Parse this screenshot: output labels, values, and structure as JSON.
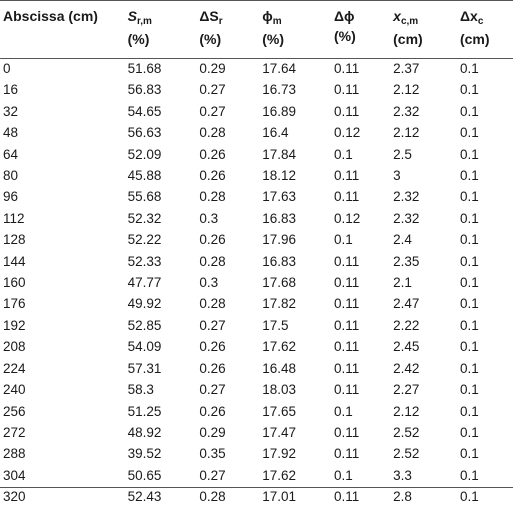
{
  "table": {
    "headers": [
      {
        "main": "Abscissa (cm)",
        "unit": ""
      },
      {
        "main": "S",
        "sub": "r,m",
        "unit": "(%)"
      },
      {
        "main": "ΔS",
        "sub": "r",
        "unit": "(%)"
      },
      {
        "main": "ϕ",
        "sub": "m",
        "unit": "(%)"
      },
      {
        "main": "Δϕ",
        "sub": "",
        "unit": "(%)"
      },
      {
        "main": "x",
        "sub": "c,m",
        "unit": "(cm)"
      },
      {
        "main": "Δx",
        "sub": "c",
        "unit": "(cm)"
      }
    ],
    "rows": [
      [
        "0",
        "51.68",
        "0.29",
        "17.64",
        "0.11",
        "2.37",
        "0.1"
      ],
      [
        "16",
        "56.83",
        "0.27",
        "16.73",
        "0.11",
        "2.12",
        "0.1"
      ],
      [
        "32",
        "54.65",
        "0.27",
        "16.89",
        "0.11",
        "2.32",
        "0.1"
      ],
      [
        "48",
        "56.63",
        "0.28",
        "16.4",
        "0.12",
        "2.12",
        "0.1"
      ],
      [
        "64",
        "52.09",
        "0.26",
        "17.84",
        "0.1",
        "2.5",
        "0.1"
      ],
      [
        "80",
        "45.88",
        "0.26",
        "18.12",
        "0.11",
        "3",
        "0.1"
      ],
      [
        "96",
        "55.68",
        "0.28",
        "17.63",
        "0.11",
        "2.32",
        "0.1"
      ],
      [
        "112",
        "52.32",
        "0.3",
        "16.83",
        "0.12",
        "2.32",
        "0.1"
      ],
      [
        "128",
        "52.22",
        "0.26",
        "17.96",
        "0.1",
        "2.4",
        "0.1"
      ],
      [
        "144",
        "52.33",
        "0.28",
        "16.83",
        "0.11",
        "2.35",
        "0.1"
      ],
      [
        "160",
        "47.77",
        "0.3",
        "17.68",
        "0.11",
        "2.1",
        "0.1"
      ],
      [
        "176",
        "49.92",
        "0.28",
        "17.82",
        "0.11",
        "2.47",
        "0.1"
      ],
      [
        "192",
        "52.85",
        "0.27",
        "17.5",
        "0.11",
        "2.22",
        "0.1"
      ],
      [
        "208",
        "54.09",
        "0.26",
        "17.62",
        "0.11",
        "2.45",
        "0.1"
      ],
      [
        "224",
        "57.31",
        "0.26",
        "16.48",
        "0.11",
        "2.42",
        "0.1"
      ],
      [
        "240",
        "58.3",
        "0.27",
        "18.03",
        "0.11",
        "2.27",
        "0.1"
      ],
      [
        "256",
        "51.25",
        "0.26",
        "17.65",
        "0.1",
        "2.12",
        "0.1"
      ],
      [
        "272",
        "48.92",
        "0.29",
        "17.47",
        "0.11",
        "2.52",
        "0.1"
      ],
      [
        "288",
        "39.52",
        "0.35",
        "17.92",
        "0.11",
        "2.52",
        "0.1"
      ],
      [
        "304",
        "50.65",
        "0.27",
        "17.62",
        "0.1",
        "3.3",
        "0.1"
      ],
      [
        "320",
        "52.43",
        "0.28",
        "17.01",
        "0.11",
        "2.8",
        "0.1"
      ]
    ]
  },
  "colors": {
    "rule": "#555555",
    "text": "#1a1a1a"
  }
}
